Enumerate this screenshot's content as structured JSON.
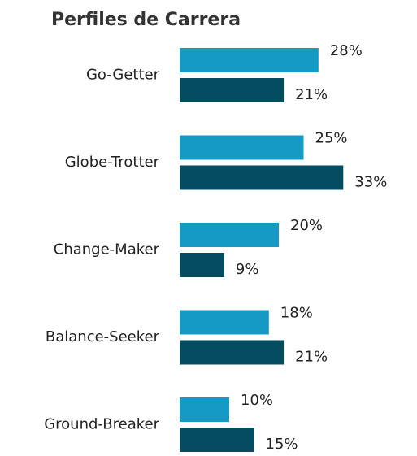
{
  "chart_data": {
    "type": "bar",
    "orientation": "horizontal",
    "title": "Perfiles de Carrera",
    "categories": [
      "Go-Getter",
      "Globe-Trotter",
      "Change-Maker",
      "Balance-Seeker",
      "Ground-Breaker"
    ],
    "series": [
      {
        "color": "#159ac6",
        "values": [
          28,
          25,
          20,
          18,
          10
        ],
        "value_labels": [
          "28%",
          "25%",
          "20%",
          "18%",
          "10%"
        ]
      },
      {
        "color": "#064c61",
        "values": [
          21,
          33,
          9,
          21,
          15
        ],
        "value_labels": [
          "21%",
          "33%",
          "9%",
          "21%",
          "15%"
        ]
      }
    ]
  }
}
